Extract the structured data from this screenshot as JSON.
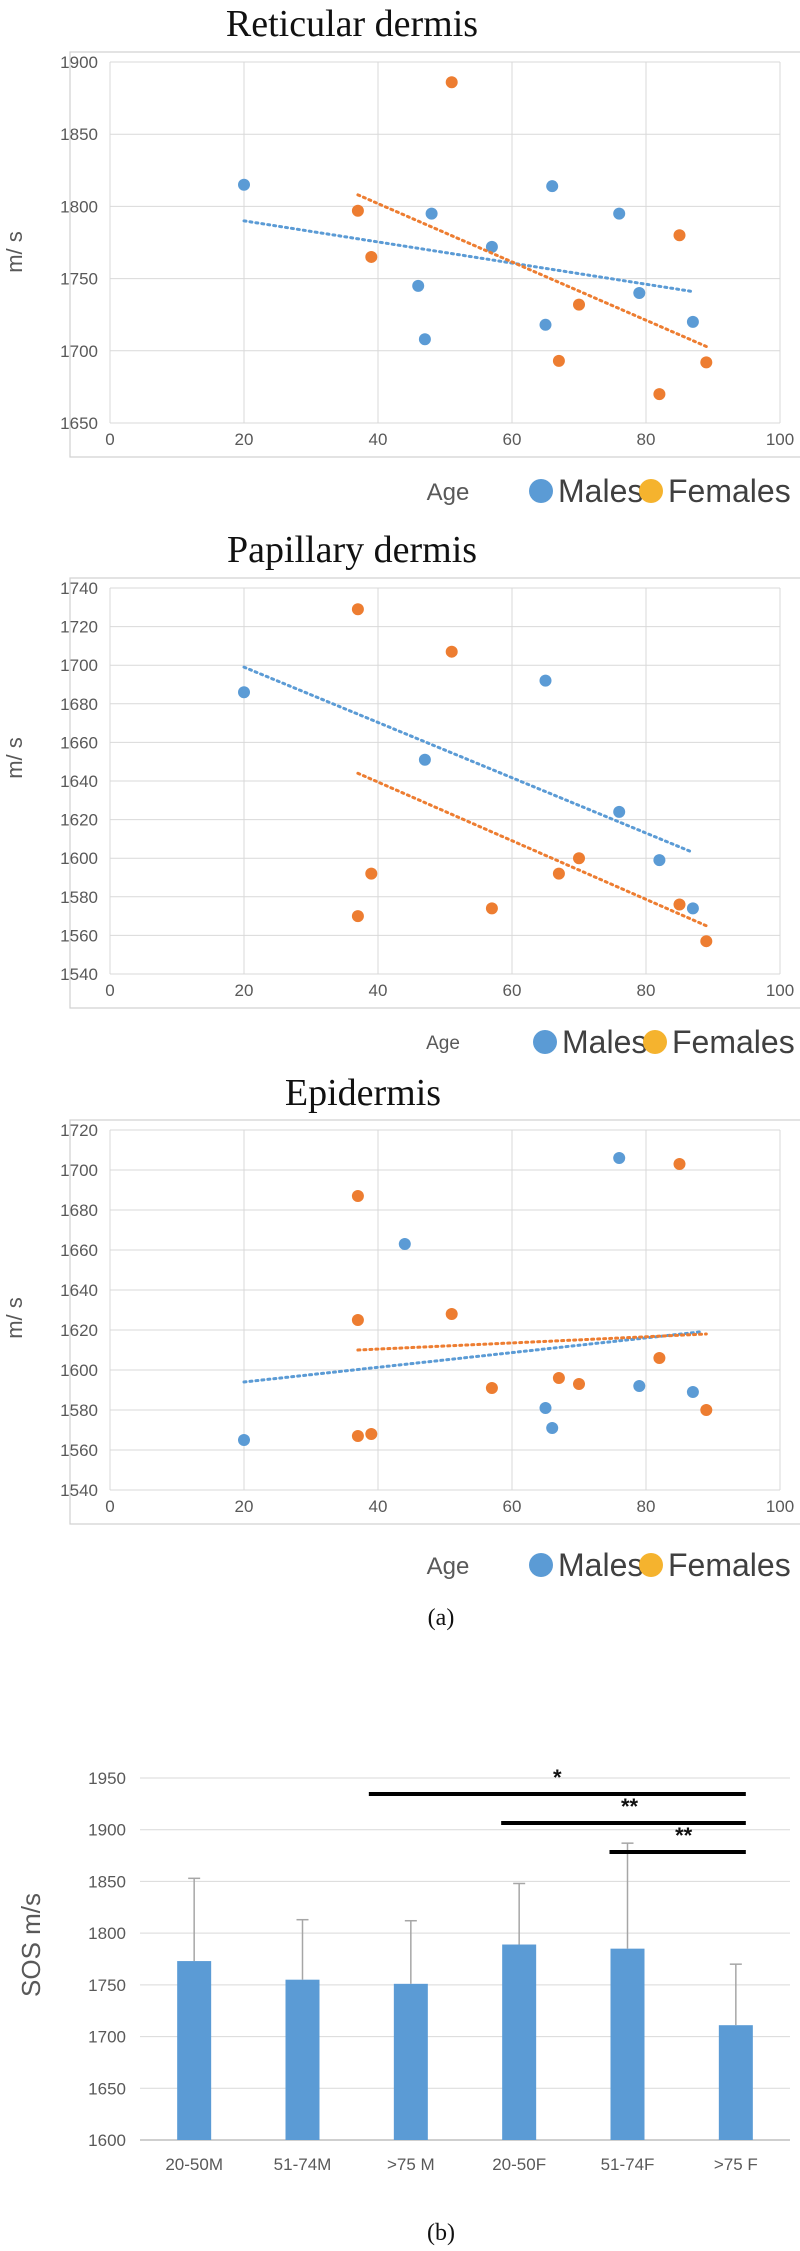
{
  "chart_data": [
    {
      "type": "scatter",
      "title": "Reticular dermis",
      "xlabel": "Age",
      "ylabel": "m/ s",
      "xlim": [
        0,
        100
      ],
      "ylim": [
        1650,
        1900
      ],
      "xticks": [
        0,
        20,
        40,
        60,
        80,
        100
      ],
      "yticks": [
        1650,
        1700,
        1750,
        1800,
        1850,
        1900
      ],
      "grid": true,
      "legend": [
        "Males",
        "Females"
      ],
      "series": [
        {
          "name": "Males",
          "color": "#5b9bd5",
          "x": [
            20,
            46,
            47,
            48,
            57,
            65,
            66,
            76,
            79,
            87
          ],
          "y": [
            1815,
            1745,
            1708,
            1795,
            1772,
            1718,
            1814,
            1795,
            1740,
            1720
          ],
          "trend": [
            [
              20,
              1790
            ],
            [
              87,
              1741
            ]
          ]
        },
        {
          "name": "Females",
          "color": "#ed7d31",
          "x": [
            37,
            39,
            51,
            67,
            70,
            82,
            85,
            89
          ],
          "y": [
            1797,
            1765,
            1886,
            1693,
            1732,
            1670,
            1780,
            1692
          ],
          "trend": [
            [
              37,
              1808
            ],
            [
              89,
              1703
            ]
          ]
        }
      ]
    },
    {
      "type": "scatter",
      "title": "Papillary dermis",
      "xlabel": "Age",
      "ylabel": "m/ s",
      "xlim": [
        0,
        100
      ],
      "ylim": [
        1540,
        1740
      ],
      "xticks": [
        0,
        20,
        40,
        60,
        80,
        100
      ],
      "yticks": [
        1540,
        1560,
        1580,
        1600,
        1620,
        1640,
        1660,
        1680,
        1700,
        1720,
        1740
      ],
      "grid": true,
      "legend": [
        "Males",
        "Females"
      ],
      "series": [
        {
          "name": "Males",
          "color": "#5b9bd5",
          "x": [
            20,
            47,
            65,
            76,
            82,
            87
          ],
          "y": [
            1686,
            1651,
            1692,
            1624,
            1599,
            1574
          ],
          "trend": [
            [
              20,
              1699
            ],
            [
              87,
              1603
            ]
          ]
        },
        {
          "name": "Females",
          "color": "#ed7d31",
          "x": [
            37,
            37,
            39,
            51,
            57,
            67,
            70,
            85,
            89
          ],
          "y": [
            1729,
            1570,
            1592,
            1707,
            1574,
            1592,
            1600,
            1576,
            1557
          ],
          "trend": [
            [
              37,
              1644
            ],
            [
              89,
              1565
            ]
          ]
        }
      ]
    },
    {
      "type": "scatter",
      "title": "Epidermis",
      "xlabel": "Age",
      "ylabel": "m/ s",
      "xlim": [
        0,
        100
      ],
      "ylim": [
        1540,
        1720
      ],
      "xticks": [
        0,
        20,
        40,
        60,
        80,
        100
      ],
      "yticks": [
        1540,
        1560,
        1580,
        1600,
        1620,
        1640,
        1660,
        1680,
        1700,
        1720
      ],
      "grid": true,
      "legend": [
        "Males",
        "Females"
      ],
      "series": [
        {
          "name": "Males",
          "color": "#5b9bd5",
          "x": [
            20,
            44,
            65,
            66,
            76,
            79,
            87
          ],
          "y": [
            1565,
            1663,
            1581,
            1571,
            1706,
            1592,
            1589
          ],
          "trend": [
            [
              20,
              1594
            ],
            [
              88,
              1619
            ]
          ]
        },
        {
          "name": "Females",
          "color": "#ed7d31",
          "x": [
            37,
            37,
            37,
            39,
            51,
            57,
            67,
            70,
            82,
            85,
            89
          ],
          "y": [
            1687,
            1625,
            1567,
            1568,
            1628,
            1591,
            1596,
            1593,
            1606,
            1703,
            1580
          ],
          "trend": [
            [
              37,
              1610
            ],
            [
              89,
              1618
            ]
          ]
        }
      ]
    },
    {
      "type": "bar",
      "title": "",
      "xlabel": "",
      "ylabel": "SOS m/s",
      "ylim": [
        1600,
        1950
      ],
      "yticks": [
        1600,
        1650,
        1700,
        1750,
        1800,
        1850,
        1900,
        1950
      ],
      "grid": true,
      "categories": [
        "20-50M",
        "51-74M",
        ">75 M",
        "20-50F",
        "51-74F",
        ">75 F"
      ],
      "values": [
        1773,
        1755,
        1751,
        1789,
        1785,
        1711
      ],
      "errors": [
        80,
        58,
        61,
        59,
        102,
        59
      ],
      "color": "#5b9bd5",
      "significance": [
        {
          "from": 2,
          "to": 5,
          "label": "*"
        },
        {
          "from": 3,
          "to": 5,
          "label": "**"
        },
        {
          "from": 4,
          "to": 5,
          "label": "**"
        }
      ]
    }
  ],
  "captions": [
    "(a)",
    "(b)"
  ]
}
